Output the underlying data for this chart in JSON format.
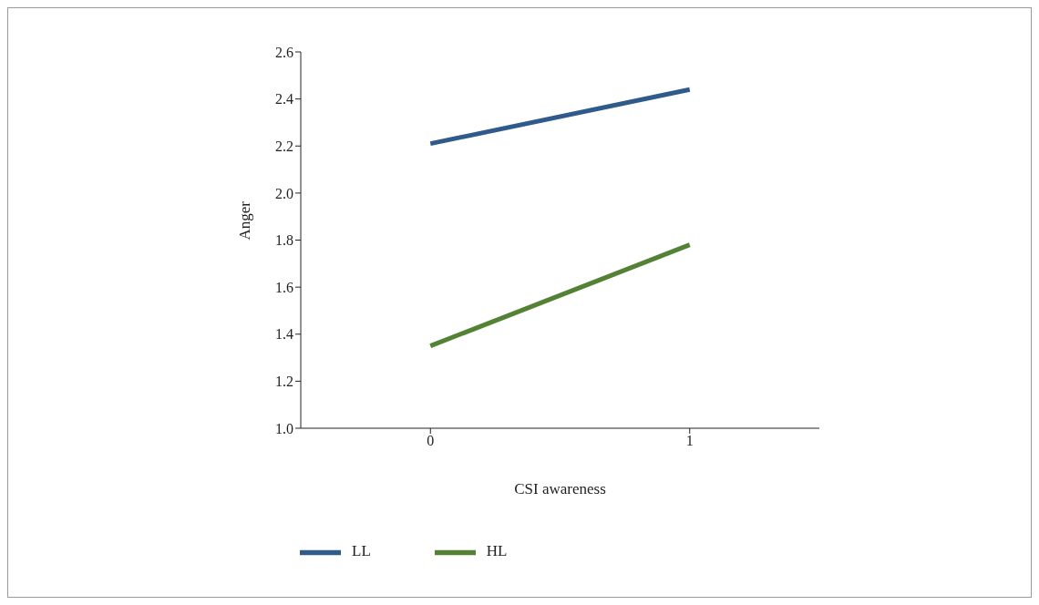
{
  "chart_data": {
    "type": "line",
    "xlabel": "CSI awareness",
    "ylabel": "Anger",
    "x": [
      0,
      1
    ],
    "xlim": [
      -0.5,
      1.5
    ],
    "xticks": [
      0,
      1
    ],
    "ylim": [
      1.0,
      2.6
    ],
    "yticks": [
      {
        "value": 1.0,
        "label": "1.0"
      },
      {
        "value": 1.2,
        "label": "1.2"
      },
      {
        "value": 1.4,
        "label": "1.4"
      },
      {
        "value": 1.6,
        "label": "1.6"
      },
      {
        "value": 1.8,
        "label": "1.8"
      },
      {
        "value": 2.0,
        "label": "2.0"
      },
      {
        "value": 2.2,
        "label": "2.2"
      },
      {
        "value": 2.4,
        "label": "2.4"
      },
      {
        "value": 2.6,
        "label": "2.6"
      }
    ],
    "grid": false,
    "legend": "bottom left",
    "marker": "none",
    "line_style": "solid",
    "series": [
      {
        "name": "LL",
        "color": "#2f5b8c",
        "values": [
          2.21,
          2.44
        ]
      },
      {
        "name": "HL",
        "color": "#548235",
        "values": [
          1.35,
          1.78
        ]
      }
    ]
  }
}
